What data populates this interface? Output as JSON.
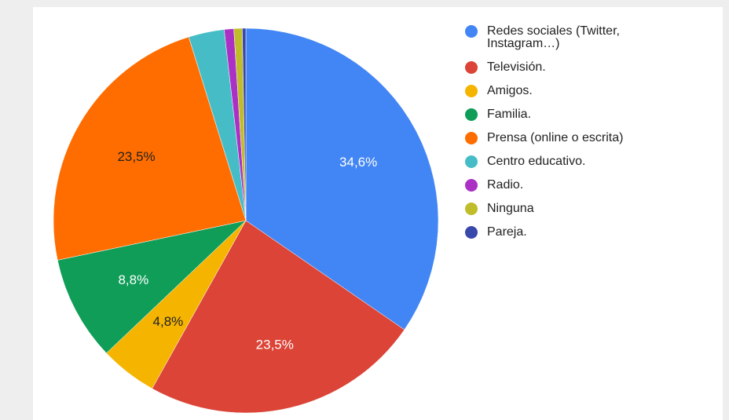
{
  "chart_data": {
    "type": "pie",
    "title": "",
    "legend_position": "right",
    "slices": [
      {
        "label": "Redes sociales (Twitter, Instagram…)",
        "value": 34.6,
        "display": "34,6%",
        "color": "#4285f4"
      },
      {
        "label": "Televisión.",
        "value": 23.5,
        "display": "23,5%",
        "color": "#db4437"
      },
      {
        "label": "Amigos.",
        "value": 4.8,
        "display": "4,8%",
        "color": "#f4b400"
      },
      {
        "label": "Familia.",
        "value": 8.8,
        "display": "8,8%",
        "color": "#0f9d58"
      },
      {
        "label": "Prensa (online o escrita)",
        "value": 23.5,
        "display": "23,5%",
        "color": "#ff6d00"
      },
      {
        "label": "Centro educativo.",
        "value": 3.0,
        "display": "",
        "color": "#46bdc6"
      },
      {
        "label": "Radio.",
        "value": 0.8,
        "display": "",
        "color": "#ab30c4"
      },
      {
        "label": "Ninguna",
        "value": 0.7,
        "display": "",
        "color": "#c0bd2a"
      },
      {
        "label": "Pareja.",
        "value": 0.3,
        "display": "",
        "color": "#3949ab"
      }
    ]
  }
}
